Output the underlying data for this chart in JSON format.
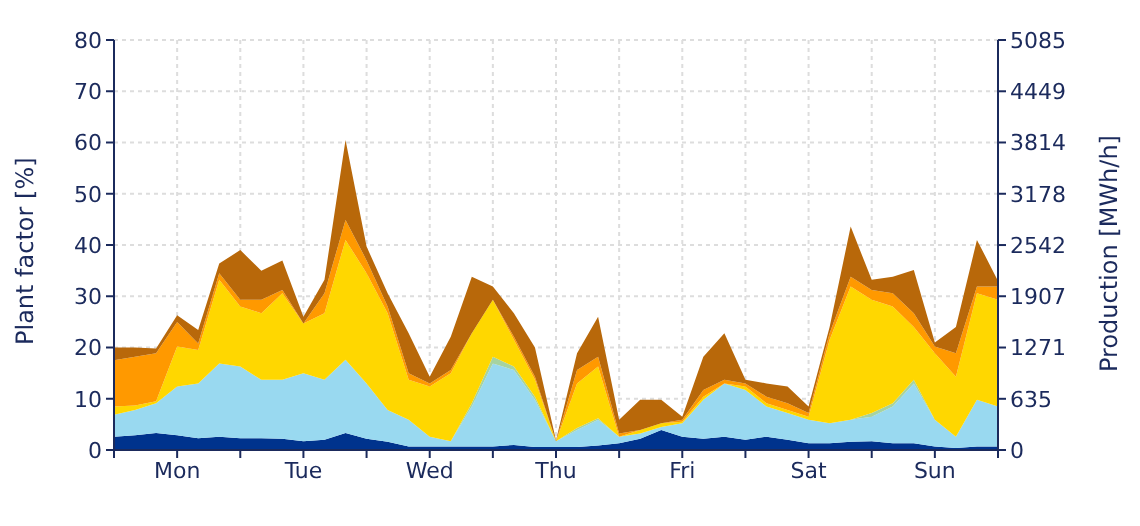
{
  "chart_data": {
    "type": "area",
    "stacked": true,
    "ylabel": "Plant factor [%]",
    "y2label": "Production [MWh/h]",
    "categories": [
      null,
      null,
      null,
      "Mon",
      null,
      null,
      null,
      null,
      null,
      "Tue",
      null,
      null,
      null,
      null,
      null,
      "Wed",
      null,
      null,
      null,
      null,
      null,
      "Thu",
      null,
      null,
      null,
      null,
      null,
      "Fri",
      null,
      null,
      null,
      null,
      null,
      "Sat",
      null,
      null,
      null,
      null,
      null,
      "Sun",
      null,
      null,
      null
    ],
    "series": [
      {
        "color": "#00338d",
        "values": [
          2.6,
          2.9,
          3.3,
          2.9,
          2.3,
          2.6,
          2.3,
          2.3,
          2.2,
          1.7,
          2.0,
          3.3,
          2.2,
          1.6,
          0.7,
          0.7,
          0.7,
          0.7,
          0.7,
          1.0,
          0.6,
          0.6,
          0.6,
          0.9,
          1.3,
          2.2,
          3.9,
          2.6,
          2.2,
          2.6,
          2.0,
          2.6,
          2.0,
          1.3,
          1.3,
          1.6,
          1.7,
          1.3,
          1.3,
          0.7,
          0.4,
          0.7,
          0.7
        ]
      },
      {
        "color": "#99d9f0",
        "values": [
          4.3,
          4.9,
          5.8,
          9.5,
          10.7,
          14.3,
          14.0,
          11.4,
          11.5,
          13.3,
          11.7,
          14.3,
          10.8,
          6.2,
          5.2,
          1.9,
          1.0,
          7.8,
          16.2,
          14.6,
          9.2,
          1.1,
          3.3,
          5.0,
          1.3,
          1.0,
          0.6,
          2.6,
          7.6,
          10.4,
          9.7,
          5.9,
          5.2,
          4.6,
          3.9,
          4.3,
          4.8,
          7.2,
          11.7,
          5.2,
          2.2,
          9.1,
          7.8
        ]
      },
      {
        "color": "#a6d3a0",
        "values": [
          0,
          0,
          0,
          0,
          0,
          0,
          0,
          0,
          0,
          0,
          0,
          0,
          0,
          0,
          0,
          0,
          0,
          0.6,
          1.3,
          0.7,
          0.6,
          0,
          0.4,
          0.3,
          0,
          0,
          0,
          0,
          0,
          0,
          0,
          0,
          0,
          0,
          0,
          0,
          0.7,
          0.6,
          0.7,
          0,
          0,
          0,
          0
        ]
      },
      {
        "color": "#ffd700",
        "values": [
          1.6,
          0.9,
          0.4,
          7.8,
          6.5,
          16.3,
          11.7,
          13.0,
          16.9,
          9.7,
          13.0,
          23.4,
          21.5,
          18.9,
          7.8,
          9.8,
          13.3,
          13.7,
          11.1,
          5.2,
          3.3,
          0,
          8.7,
          10.1,
          0,
          0.7,
          0.7,
          0.3,
          0.6,
          0,
          0.7,
          0.6,
          0.6,
          0.6,
          16.3,
          26.0,
          22.1,
          18.9,
          10.3,
          13.0,
          11.7,
          20.8,
          20.8
        ]
      },
      {
        "color": "#ff9900",
        "values": [
          9.0,
          9.5,
          9.4,
          4.8,
          1.3,
          1.3,
          1.3,
          2.6,
          0.6,
          0,
          3.9,
          3.9,
          2.5,
          1.3,
          1.3,
          0.6,
          0.6,
          0,
          0,
          0.6,
          0.6,
          0,
          2.6,
          1.9,
          0.6,
          0,
          0,
          0.4,
          1.3,
          0.7,
          0.6,
          1.3,
          1.3,
          0.7,
          1.3,
          1.9,
          1.9,
          2.6,
          2.7,
          1.3,
          4.6,
          1.3,
          2.6
        ]
      },
      {
        "color": "#b8680a",
        "values": [
          2.5,
          1.8,
          0.9,
          1.3,
          2.6,
          1.9,
          9.7,
          5.7,
          5.8,
          1.3,
          2.6,
          15.6,
          2.7,
          2.6,
          7.8,
          1.3,
          6.5,
          11.0,
          2.6,
          4.6,
          5.7,
          0.2,
          3.3,
          7.8,
          2.7,
          5.9,
          4.6,
          0.6,
          6.5,
          9.1,
          0.7,
          2.6,
          3.3,
          1.3,
          1.2,
          9.8,
          2.0,
          3.2,
          8.4,
          0.8,
          5.1,
          9.1,
          1.1
        ]
      }
    ],
    "ylim": [
      0,
      80
    ],
    "yticks": [
      0,
      10,
      20,
      30,
      40,
      50,
      60,
      70,
      80
    ],
    "y2lim": [
      0,
      5085
    ],
    "y2ticks": [
      0,
      635,
      1271,
      1907,
      2542,
      3178,
      3814,
      4449,
      5085
    ],
    "grid": true
  }
}
